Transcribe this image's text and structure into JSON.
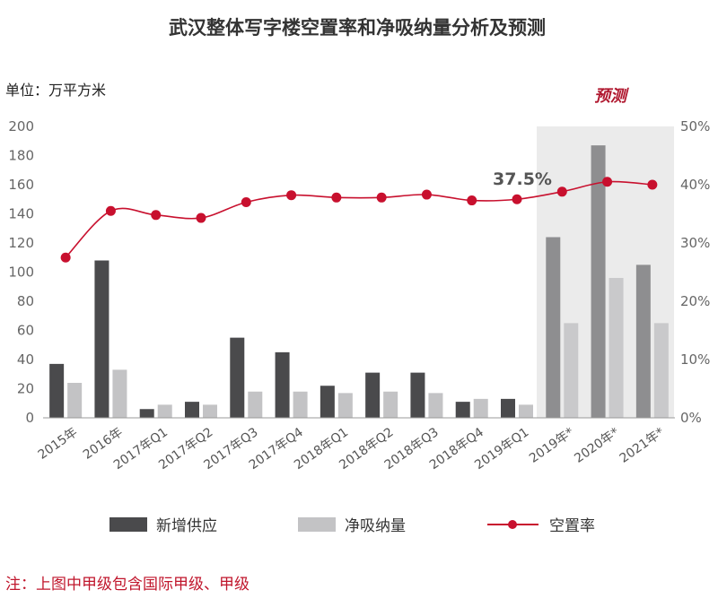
{
  "chart_data": {
    "type": "bar",
    "title": "武汉整体写字楼空置率和净吸纳量分析及预测",
    "unit_label": "单位：万平方米",
    "forecast_label": "预测",
    "annotation": "37.5%",
    "note": "注：上图中甲级包含国际甲级、甲级",
    "categories": [
      "2015年",
      "2016年",
      "2017年Q1",
      "2017年Q2",
      "2017年Q3",
      "2017年Q4",
      "2018年Q1",
      "2018年Q2",
      "2018年Q3",
      "2018年Q4",
      "2019年Q1",
      "2019年*",
      "2020年*",
      "2021年*"
    ],
    "forecast_categories": [
      "2019年*",
      "2020年*",
      "2021年*"
    ],
    "series": [
      {
        "name": "新增供应",
        "kind": "bar",
        "axis": "left",
        "color": "#4a4a4c",
        "values": [
          37,
          108,
          6,
          11,
          55,
          45,
          22,
          31,
          31,
          11,
          13,
          124,
          187,
          105
        ]
      },
      {
        "name": "净吸纳量",
        "kind": "bar",
        "axis": "left",
        "color": "#c3c3c5",
        "values": [
          24,
          33,
          9,
          9,
          18,
          18,
          17,
          18,
          17,
          13,
          9,
          65,
          96,
          65
        ]
      },
      {
        "name": "空置率",
        "kind": "line",
        "axis": "right",
        "color": "#c8102e",
        "values": [
          27.5,
          35.5,
          34.8,
          34.3,
          37.0,
          38.2,
          37.8,
          37.8,
          38.3,
          37.3,
          37.5,
          38.8,
          40.5,
          40.0
        ]
      }
    ],
    "y_left": {
      "ylim": [
        0,
        200
      ],
      "ticks": [
        "0",
        "20",
        "40",
        "60",
        "80",
        "100",
        "120",
        "140",
        "160",
        "180",
        "200"
      ]
    },
    "y_right": {
      "ylim": [
        0,
        50
      ],
      "ticks": [
        "0%",
        "10%",
        "20%",
        "30%",
        "40%",
        "50%"
      ]
    },
    "grid": false,
    "legend_position": "bottom"
  }
}
